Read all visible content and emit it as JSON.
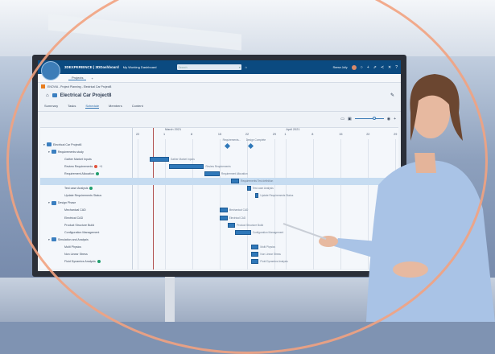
{
  "app": {
    "brand": "3DEXPERIENCE | 3DDashboard",
    "dashboard": "My Working Dashboard",
    "search_placeholder": "Search",
    "user": "Reese Jolly",
    "tab": "Projects"
  },
  "breadcrumb": "ENOVIA - Project Planning - Electrical Car Project8",
  "title": "Electrical Car Project8",
  "nav": [
    "Summary",
    "Tasks",
    "Schedule",
    "Members",
    "Content"
  ],
  "nav_active": "Schedule",
  "colors": {
    "topbar": "#0b4a80",
    "bar": "#2f78b9",
    "accent_ring": "#f2a27f"
  },
  "chart_data": {
    "type": "gantt",
    "months": [
      {
        "label": "March 2021",
        "date": "2021-03-01"
      },
      {
        "label": "April 2021",
        "date": "2021-04-01"
      }
    ],
    "ticks": [
      {
        "label": "22",
        "date": "2021-02-22"
      },
      {
        "label": "1",
        "date": "2021-03-01"
      },
      {
        "label": "8",
        "date": "2021-03-08"
      },
      {
        "label": "15",
        "date": "2021-03-15"
      },
      {
        "label": "22",
        "date": "2021-03-22"
      },
      {
        "label": "29",
        "date": "2021-03-29"
      },
      {
        "label": "1",
        "date": "2021-04-01"
      },
      {
        "label": "8",
        "date": "2021-04-08"
      },
      {
        "label": "15",
        "date": "2021-04-15"
      },
      {
        "label": "22",
        "date": "2021-04-22"
      },
      {
        "label": "29",
        "date": "2021-04-29"
      }
    ],
    "today": "2021-02-26",
    "milestones": [
      {
        "label": "Requirements...",
        "date": "2021-03-17"
      },
      {
        "label": "Design Complete",
        "date": "2021-03-23"
      }
    ],
    "rows": [
      {
        "name": "Electrical Car Project8",
        "level": 0,
        "group": true
      },
      {
        "name": "Requirements study",
        "level": 1,
        "group": true
      },
      {
        "name": "Gather Market Inputs",
        "level": 2,
        "start": "2021-02-25",
        "end": "2021-03-02",
        "bar_label": "Gather Market Inputs"
      },
      {
        "name": "Review Requirements",
        "level": 2,
        "start": "2021-03-02",
        "end": "2021-03-11",
        "status": "red",
        "badge": "+1",
        "bar_label": "Review Requirements"
      },
      {
        "name": "Requirement Allocation",
        "level": 2,
        "start": "2021-03-11",
        "end": "2021-03-15",
        "status": "green",
        "bar_label": "Requirement Allocation"
      },
      {
        "name": "Requirements Test definition",
        "level": 2,
        "start": "2021-03-18",
        "end": "2021-03-20",
        "selected": true,
        "bar_label": "Requirements Test definition"
      },
      {
        "name": "Test case Analysis",
        "level": 2,
        "start": "2021-03-22",
        "end": "2021-03-23",
        "status": "green",
        "bar_label": "Test case Analysis"
      },
      {
        "name": "Update Requirements Status",
        "level": 2,
        "start": "2021-03-24",
        "end": "2021-03-25",
        "bar_label": "Update Requirements Status"
      },
      {
        "name": "Design Phase",
        "level": 1,
        "group": true
      },
      {
        "name": "Mechanical CAD",
        "level": 2,
        "start": "2021-03-15",
        "end": "2021-03-17",
        "bar_label": "Mechanical CAD"
      },
      {
        "name": "Electrical CAD",
        "level": 2,
        "start": "2021-03-15",
        "end": "2021-03-17",
        "bar_label": "Electrical CAD"
      },
      {
        "name": "Product Structure Build",
        "level": 2,
        "start": "2021-03-17",
        "end": "2021-03-19",
        "bar_label": "Product Structure Build"
      },
      {
        "name": "Configuration Management",
        "level": 2,
        "start": "2021-03-19",
        "end": "2021-03-23",
        "bar_label": "Configuration Management"
      },
      {
        "name": "Simulation and Analysis",
        "level": 1,
        "group": true
      },
      {
        "name": "Multi Physics",
        "level": 2,
        "start": "2021-03-23",
        "end": "2021-03-25",
        "bar_label": "Multi Physics"
      },
      {
        "name": "Non Linear Stress",
        "level": 2,
        "start": "2021-03-23",
        "end": "2021-03-25",
        "bar_label": "Non Linear Stress"
      },
      {
        "name": "Fluid Dynamics Analysis",
        "level": 2,
        "start": "2021-03-23",
        "end": "2021-03-25",
        "status": "green",
        "bar_label": "Fluid Dynamics Analysis"
      }
    ]
  }
}
